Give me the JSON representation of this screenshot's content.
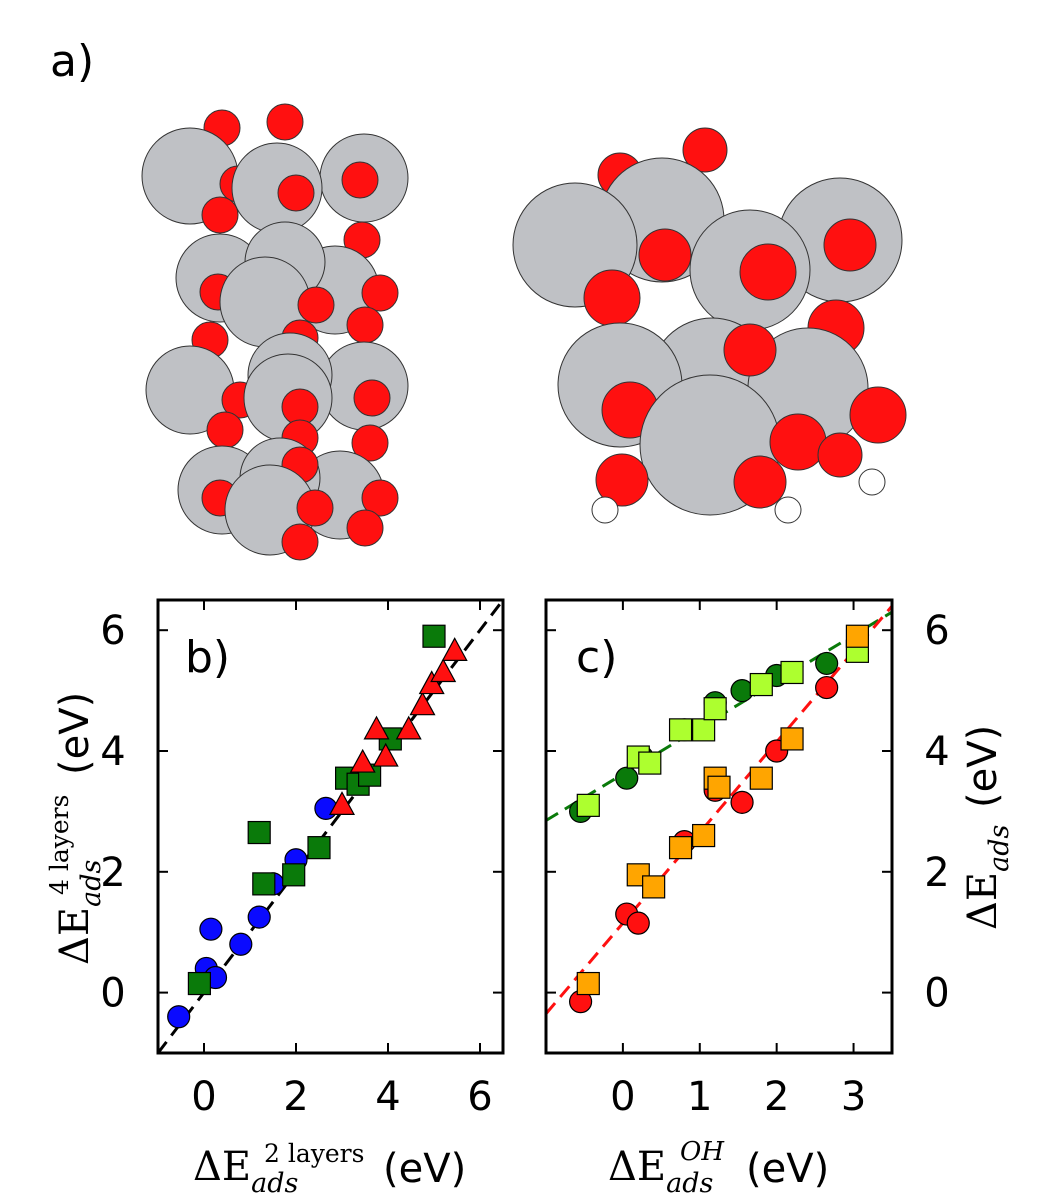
{
  "panel_labels": {
    "a": "a)",
    "b": "b)",
    "c": "c)"
  },
  "colors": {
    "metal": "#bfc1c5",
    "oxygen": "#ff1010",
    "hydrogen": "#ffffff",
    "blue": "#0a0aff",
    "green": "#0a7a0a",
    "lightgreen": "#adff2f",
    "red": "#ff1010",
    "orange": "#ffa500",
    "black": "#000000"
  },
  "axis_labels": {
    "b_x_delta": "ΔE",
    "b_x_sub": "ads",
    "b_x_sup": "2 layers",
    "b_x_unit": "(eV)",
    "b_y_delta": "ΔE",
    "b_y_sub": "ads",
    "b_y_sup": "4 layers",
    "b_y_unit": "(eV)",
    "c_x_delta": "ΔE",
    "c_x_sub": "ads",
    "c_x_sup": "OH",
    "c_x_unit": "(eV)",
    "c_y_delta": "ΔE",
    "c_y_sub": "ads",
    "c_y_unit": "(eV)"
  },
  "chart_data": [
    {
      "type": "scatter",
      "panel": "b",
      "xlim": [
        -1,
        6.5
      ],
      "ylim": [
        -1,
        6.5
      ],
      "xticks": [
        0,
        2,
        4,
        6
      ],
      "yticks": [
        0,
        2,
        4,
        6
      ],
      "grid": false,
      "lines": [
        {
          "style": "dashed",
          "color": "#000000",
          "x": [
            -1,
            6.5
          ],
          "y": [
            -1,
            6.5
          ]
        }
      ],
      "series": [
        {
          "marker": "circle",
          "color": "#0a0aff",
          "points": [
            [
              -0.55,
              -0.4
            ],
            [
              0.05,
              0.4
            ],
            [
              0.25,
              0.25
            ],
            [
              0.15,
              1.05
            ],
            [
              0.8,
              0.8
            ],
            [
              1.2,
              1.25
            ],
            [
              1.5,
              1.8
            ],
            [
              2.0,
              2.2
            ],
            [
              2.65,
              3.05
            ]
          ]
        },
        {
          "marker": "square",
          "color": "#0a7a0a",
          "points": [
            [
              -0.1,
              0.15
            ],
            [
              1.2,
              2.65
            ],
            [
              1.3,
              1.8
            ],
            [
              1.95,
              1.95
            ],
            [
              2.5,
              2.4
            ],
            [
              3.1,
              3.55
            ],
            [
              3.35,
              3.45
            ],
            [
              3.6,
              3.6
            ],
            [
              4.05,
              4.2
            ],
            [
              5.0,
              5.9
            ]
          ]
        },
        {
          "marker": "triangle",
          "color": "#ff1010",
          "points": [
            [
              3.0,
              3.1
            ],
            [
              3.45,
              3.8
            ],
            [
              3.75,
              4.35
            ],
            [
              3.95,
              3.9
            ],
            [
              4.45,
              4.35
            ],
            [
              4.75,
              4.75
            ],
            [
              4.95,
              5.1
            ],
            [
              5.2,
              5.3
            ],
            [
              5.45,
              5.65
            ]
          ]
        }
      ]
    },
    {
      "type": "scatter",
      "panel": "c",
      "xlim": [
        -1,
        3.5
      ],
      "ylim": [
        -1,
        6.5
      ],
      "xticks": [
        0,
        1,
        2,
        3
      ],
      "yticks": [
        0,
        2,
        4,
        6
      ],
      "grid": false,
      "lines": [
        {
          "style": "dashed",
          "color": "#0a7a0a",
          "x": [
            -1,
            3.5
          ],
          "y": [
            2.85,
            6.3
          ]
        },
        {
          "style": "dashed",
          "color": "#ff1010",
          "x": [
            -1,
            3.5
          ],
          "y": [
            -0.35,
            6.4
          ]
        }
      ],
      "series": [
        {
          "marker": "circle",
          "color": "#0a7a0a",
          "points": [
            [
              -0.55,
              3.0
            ],
            [
              0.05,
              3.55
            ],
            [
              0.25,
              3.9
            ],
            [
              0.8,
              4.35
            ],
            [
              1.2,
              4.8
            ],
            [
              1.55,
              5.0
            ],
            [
              2.0,
              5.25
            ],
            [
              2.65,
              5.45
            ]
          ]
        },
        {
          "marker": "square",
          "color": "#adff2f",
          "points": [
            [
              -0.45,
              3.1
            ],
            [
              0.2,
              3.9
            ],
            [
              0.35,
              3.8
            ],
            [
              0.75,
              4.35
            ],
            [
              1.05,
              4.35
            ],
            [
              1.2,
              4.7
            ],
            [
              1.8,
              5.1
            ],
            [
              2.2,
              5.3
            ],
            [
              3.05,
              5.65
            ]
          ]
        },
        {
          "marker": "circle",
          "color": "#ff1010",
          "points": [
            [
              -0.55,
              -0.15
            ],
            [
              0.05,
              1.3
            ],
            [
              0.2,
              1.15
            ],
            [
              0.8,
              2.5
            ],
            [
              1.2,
              3.35
            ],
            [
              1.55,
              3.15
            ],
            [
              2.0,
              4.0
            ],
            [
              2.65,
              5.05
            ]
          ]
        },
        {
          "marker": "square",
          "color": "#ffa500",
          "points": [
            [
              -0.45,
              0.15
            ],
            [
              0.2,
              1.95
            ],
            [
              0.4,
              1.75
            ],
            [
              0.75,
              2.4
            ],
            [
              1.05,
              2.6
            ],
            [
              1.2,
              3.55
            ],
            [
              1.25,
              3.4
            ],
            [
              1.8,
              3.55
            ],
            [
              2.2,
              4.2
            ],
            [
              3.05,
              5.9
            ]
          ]
        }
      ]
    }
  ]
}
